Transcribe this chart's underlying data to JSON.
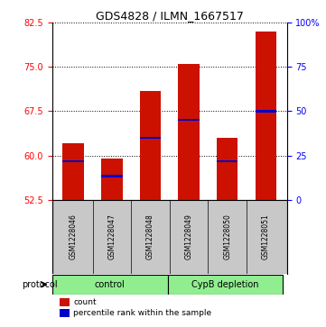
{
  "title": "GDS4828 / ILMN_1667517",
  "samples": [
    "GSM1228046",
    "GSM1228047",
    "GSM1228048",
    "GSM1228049",
    "GSM1228050",
    "GSM1228051"
  ],
  "bar_tops": [
    62.0,
    59.5,
    71.0,
    75.5,
    63.0,
    81.0
  ],
  "blue_markers": [
    59.0,
    56.5,
    63.0,
    66.0,
    59.0,
    67.5
  ],
  "baseline": 52.5,
  "ylim_left": [
    52.5,
    82.5
  ],
  "yticks_left": [
    52.5,
    60.0,
    67.5,
    75.0,
    82.5
  ],
  "ylim_right": [
    0,
    100
  ],
  "yticks_right": [
    0,
    25,
    50,
    75,
    100
  ],
  "ytick_labels_right": [
    "0",
    "25",
    "50",
    "75",
    "100%"
  ],
  "groups": [
    {
      "label": "control",
      "indices": [
        0,
        1,
        2
      ],
      "color": "#90EE90"
    },
    {
      "label": "CypB depletion",
      "indices": [
        3,
        4,
        5
      ],
      "color": "#90EE90"
    }
  ],
  "bar_color": "#CC1100",
  "blue_color": "#0000CC",
  "bar_width": 0.55,
  "plot_bg": "#FFFFFF",
  "sample_bg": "#C8C8C8",
  "group_bg": "#90EE90",
  "title_fontsize": 9,
  "sample_fontsize": 5.5,
  "group_fontsize": 7,
  "legend_fontsize": 6.5
}
